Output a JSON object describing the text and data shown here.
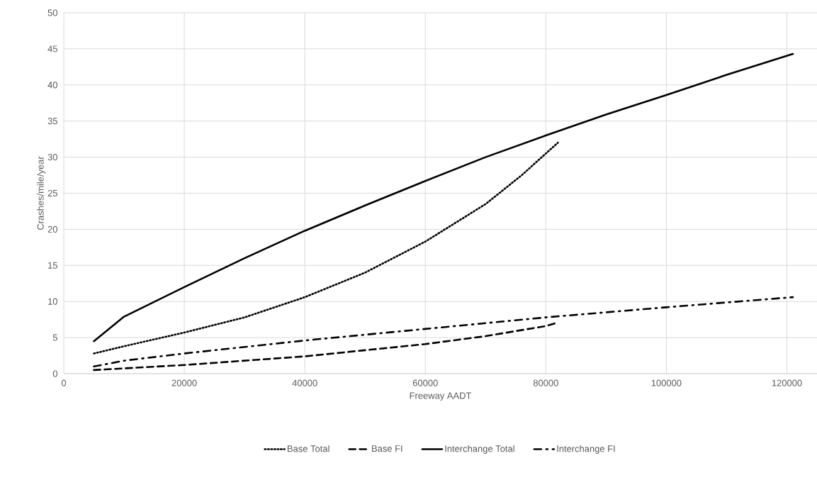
{
  "chart_data": {
    "type": "line",
    "xlabel": "Freeway AADT",
    "ylabel": "Crashes/mile/year",
    "xlim": [
      0,
      125000
    ],
    "ylim": [
      0,
      50
    ],
    "xticks": [
      0,
      20000,
      40000,
      60000,
      80000,
      100000,
      120000
    ],
    "yticks": [
      0,
      5,
      10,
      15,
      20,
      25,
      30,
      35,
      40,
      45,
      50
    ],
    "grid": true,
    "legend": "bottom",
    "marker": "none",
    "series": [
      {
        "name": "Base Total",
        "color": "#000000",
        "line_style": "dotted",
        "x": [
          5000,
          10000,
          20000,
          30000,
          40000,
          50000,
          60000,
          70000,
          76000,
          82000
        ],
        "values": [
          2.8,
          3.8,
          5.7,
          7.8,
          10.6,
          14.0,
          18.3,
          23.5,
          27.5,
          32.0
        ]
      },
      {
        "name": "Base FI",
        "color": "#000000",
        "line_style": "dashed",
        "x": [
          5000,
          20000,
          40000,
          60000,
          70000,
          80000,
          82000
        ],
        "values": [
          0.5,
          1.2,
          2.4,
          4.1,
          5.2,
          6.6,
          7.1
        ]
      },
      {
        "name": "Interchange Total",
        "color": "#000000",
        "line_style": "solid",
        "x": [
          5000,
          10000,
          20000,
          30000,
          40000,
          50000,
          60000,
          70000,
          80000,
          90000,
          100000,
          110000,
          121000
        ],
        "values": [
          4.5,
          7.9,
          12.0,
          16.0,
          19.8,
          23.3,
          26.7,
          30.0,
          33.0,
          35.9,
          38.6,
          41.4,
          44.3
        ]
      },
      {
        "name": "Interchange FI",
        "color": "#000000",
        "line_style": "dashdot",
        "x": [
          5000,
          10000,
          20000,
          40000,
          60000,
          80000,
          100000,
          121000
        ],
        "values": [
          1.0,
          1.8,
          2.8,
          4.6,
          6.2,
          7.8,
          9.2,
          10.6
        ]
      }
    ]
  }
}
